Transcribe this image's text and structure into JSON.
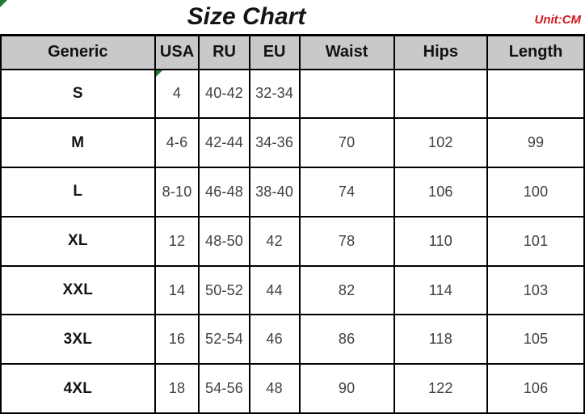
{
  "header": {
    "title": "Size Chart",
    "unit_label": "Unit:CM"
  },
  "colors": {
    "header-bg": "#c9c9c9",
    "border": "#000000",
    "title-text": "#151515",
    "unit-text": "#d11a1a",
    "cell-text": "#404040",
    "marker-green": "#217a36"
  },
  "markers": {
    "page_corner_triangle": true,
    "cell_error_indicator": {
      "row_index": 0,
      "col_index": 1
    }
  },
  "chart_data": {
    "type": "table",
    "title": "Size Chart",
    "unit": "CM",
    "columns": [
      "Generic",
      "USA",
      "RU",
      "EU",
      "Waist",
      "Hips",
      "Length"
    ],
    "rows": [
      [
        "S",
        "4",
        "40-42",
        "32-34",
        "",
        "",
        ""
      ],
      [
        "M",
        "4-6",
        "42-44",
        "34-36",
        "70",
        "102",
        "99"
      ],
      [
        "L",
        "8-10",
        "46-48",
        "38-40",
        "74",
        "106",
        "100"
      ],
      [
        "XL",
        "12",
        "48-50",
        "42",
        "78",
        "110",
        "101"
      ],
      [
        "XXL",
        "14",
        "50-52",
        "44",
        "82",
        "114",
        "103"
      ],
      [
        "3XL",
        "16",
        "52-54",
        "46",
        "86",
        "118",
        "105"
      ],
      [
        "4XL",
        "18",
        "54-56",
        "48",
        "90",
        "122",
        "106"
      ]
    ],
    "layout": {
      "header_fill": "#c9c9c9",
      "grid_on": true,
      "empty_cells_row": "S (Waist, Hips, Length blank)"
    }
  }
}
